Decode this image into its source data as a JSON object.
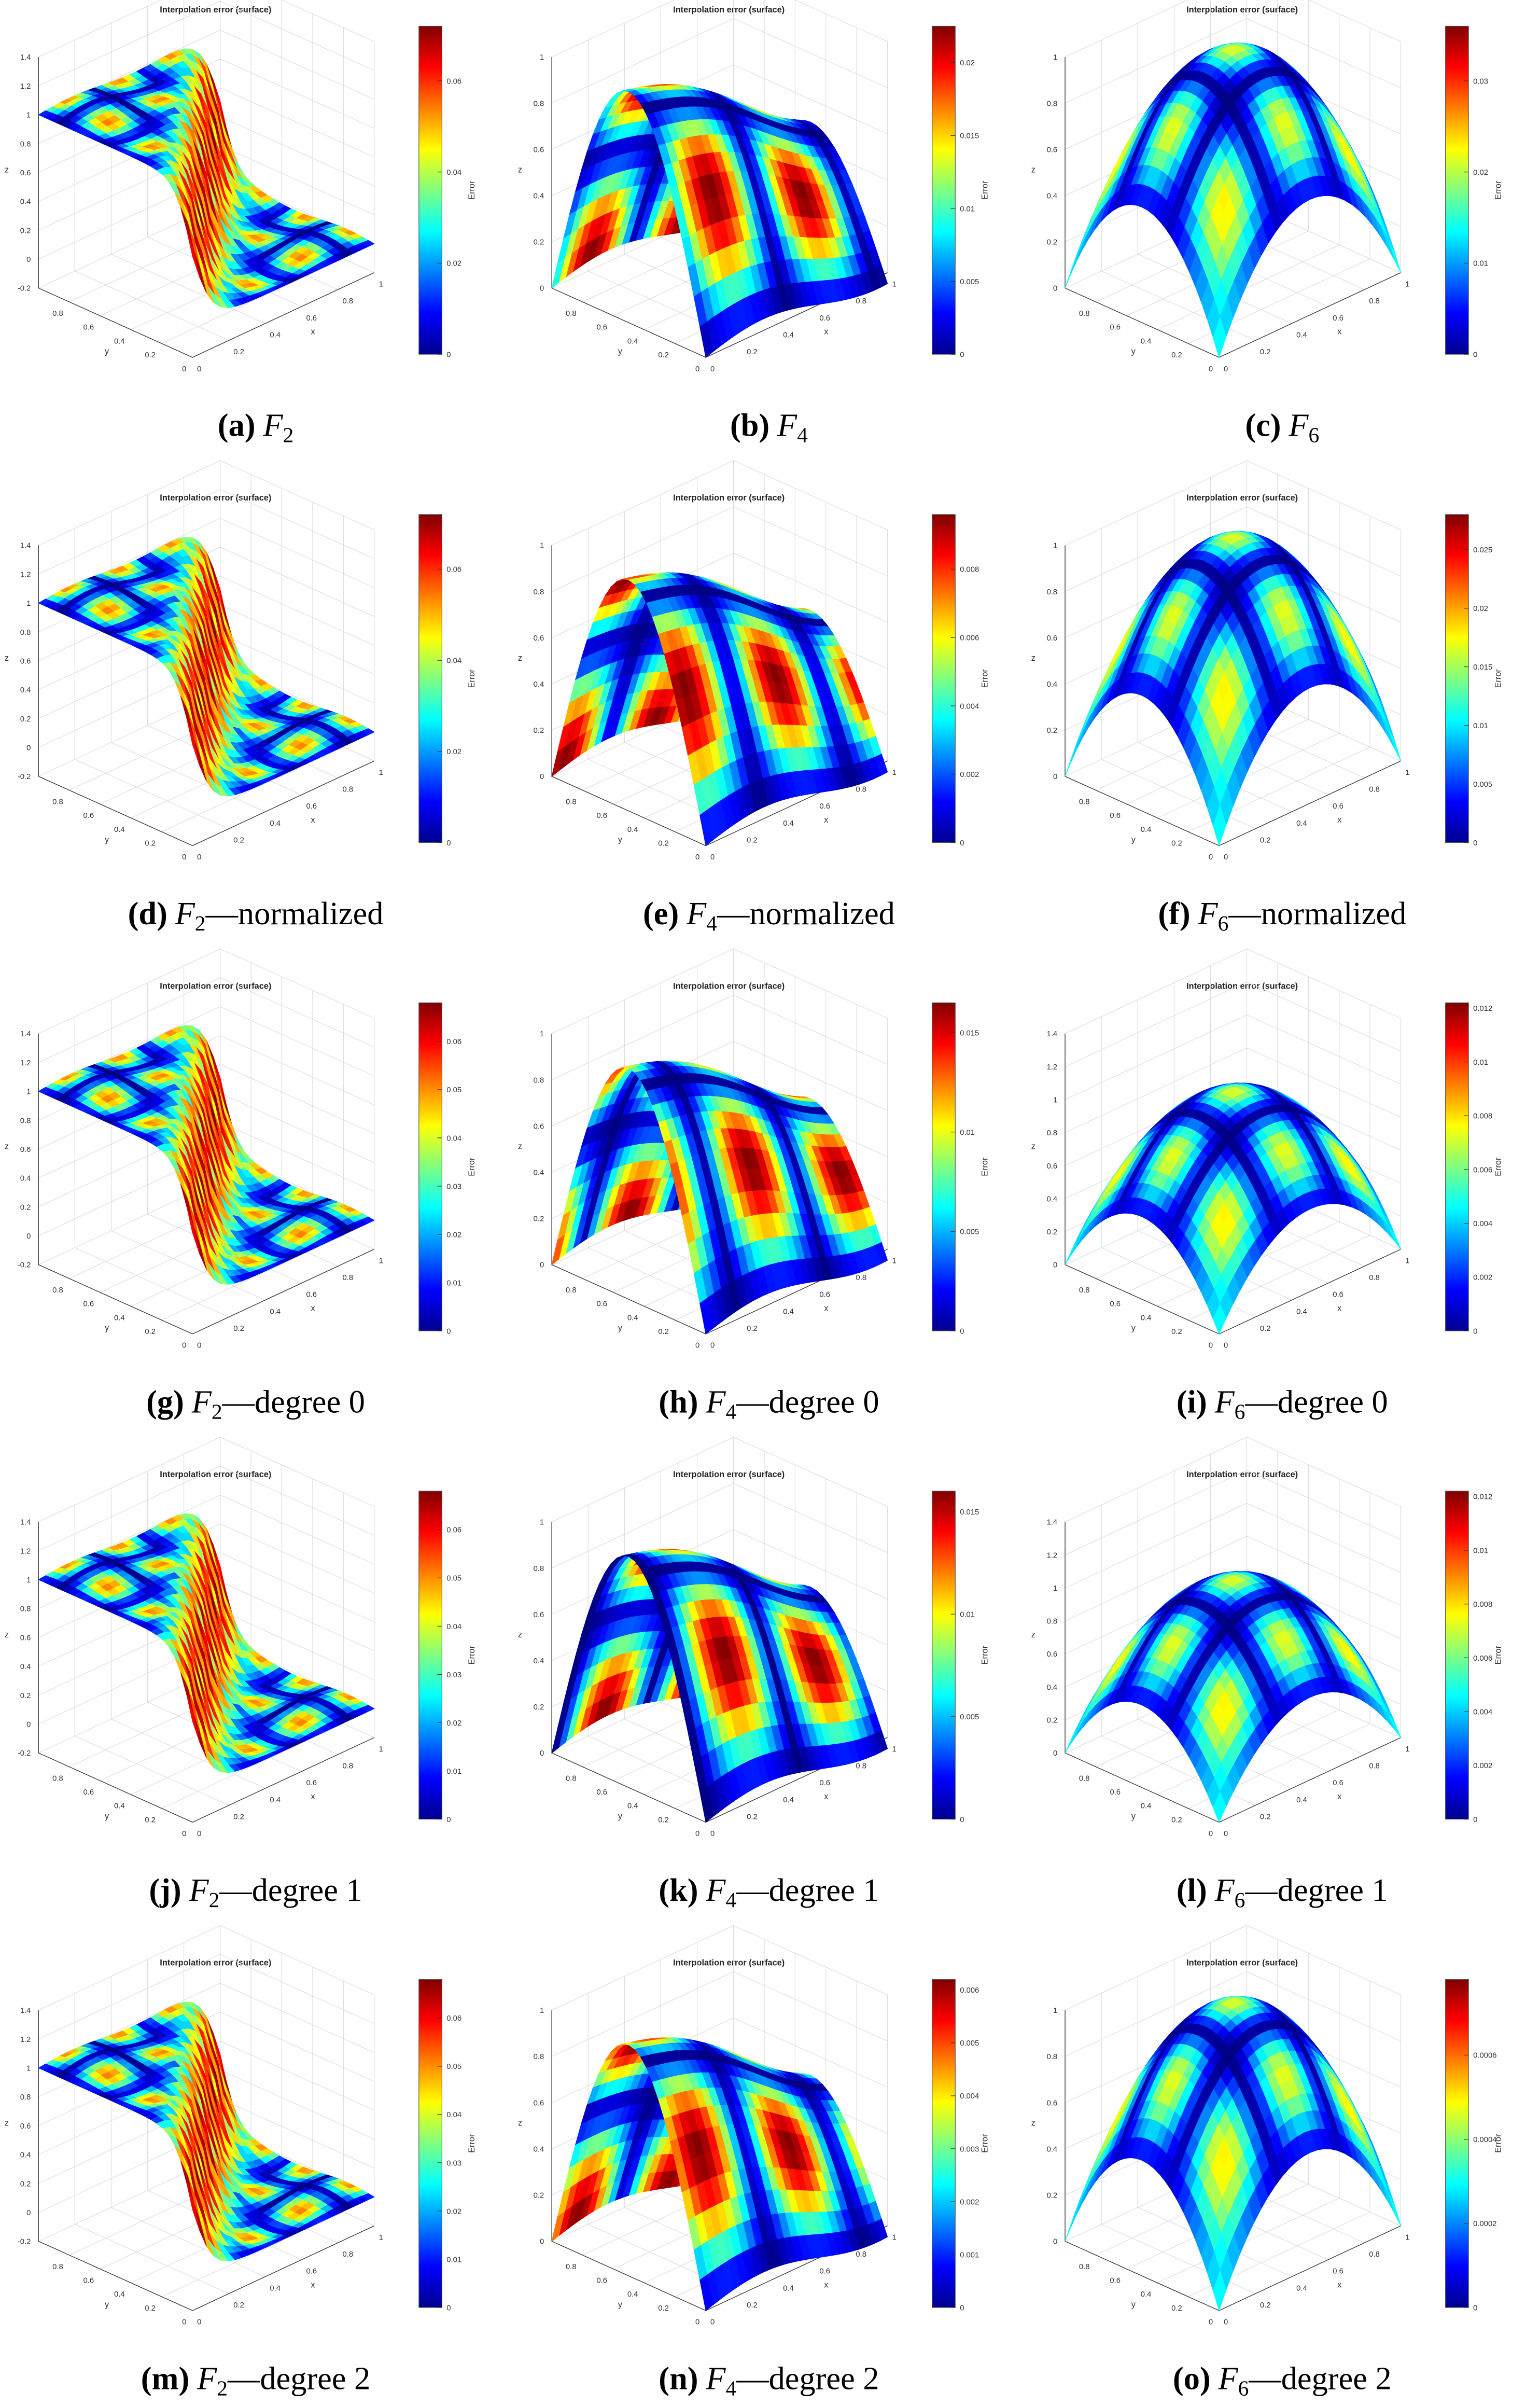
{
  "chart_data": [
    {
      "type": "surface",
      "title": "Interpolation error (surface)",
      "xlabel": "x",
      "ylabel": "y",
      "zlabel": "z",
      "colorbar_label": "Error",
      "caption": {
        "label": "(a)",
        "function": "F",
        "subscript": "2"
      },
      "xlim": [
        0,
        1
      ],
      "ylim": [
        0,
        1
      ],
      "zlim": [
        -0.2,
        1.4
      ],
      "xticks": [
        0,
        0.2,
        0.4,
        0.6,
        0.8,
        1
      ],
      "yticks": [
        0,
        0.2,
        0.4,
        0.6,
        0.8
      ],
      "zticks": [
        -0.2,
        0,
        0.2,
        0.4,
        0.6,
        0.8,
        1,
        1.2,
        1.4
      ],
      "clim": [
        0,
        0.072
      ],
      "cticks": [
        0,
        0.02,
        0.04,
        0.06
      ],
      "colormap": "jet"
    },
    {
      "type": "surface",
      "title": "Interpolation error (surface)",
      "xlabel": "x",
      "ylabel": "y",
      "zlabel": "z",
      "colorbar_label": "Error",
      "caption": {
        "label": "(b)",
        "function": "F",
        "subscript": "4"
      },
      "xlim": [
        0,
        1
      ],
      "ylim": [
        0,
        1
      ],
      "zlim": [
        0,
        1
      ],
      "xticks": [
        0,
        0.2,
        0.4,
        0.6,
        0.8,
        1
      ],
      "yticks": [
        0,
        0.2,
        0.4,
        0.6,
        0.8
      ],
      "zticks": [
        0,
        0.2,
        0.4,
        0.6,
        0.8,
        1
      ],
      "clim": [
        0,
        0.0225
      ],
      "cticks": [
        0,
        0.005,
        0.01,
        0.015,
        0.02
      ],
      "colormap": "jet"
    },
    {
      "type": "surface",
      "title": "Interpolation error (surface)",
      "xlabel": "x",
      "ylabel": "y",
      "zlabel": "z",
      "colorbar_label": "Error",
      "caption": {
        "label": "(c)",
        "function": "F",
        "subscript": "6"
      },
      "xlim": [
        0,
        1
      ],
      "ylim": [
        0,
        1
      ],
      "zlim": [
        0,
        1
      ],
      "xticks": [
        0,
        0.2,
        0.4,
        0.6,
        0.8,
        1
      ],
      "yticks": [
        0,
        0.2,
        0.4,
        0.6,
        0.8
      ],
      "zticks": [
        0,
        0.2,
        0.4,
        0.6,
        0.8,
        1
      ],
      "clim": [
        0,
        0.036
      ],
      "cticks": [
        0,
        0.01,
        0.02,
        0.03
      ],
      "colormap": "jet"
    },
    {
      "type": "surface",
      "title": "Interpolation error (surface)",
      "xlabel": "x",
      "ylabel": "y",
      "zlabel": "z",
      "colorbar_label": "Error",
      "caption": {
        "label": "(d)",
        "function": "F",
        "subscript": "2",
        "suffix": "—normalized"
      },
      "xlim": [
        0,
        1
      ],
      "ylim": [
        0,
        1
      ],
      "zlim": [
        -0.2,
        1.4
      ],
      "xticks": [
        0,
        0.2,
        0.4,
        0.6,
        0.8,
        1
      ],
      "yticks": [
        0,
        0.2,
        0.4,
        0.6,
        0.8
      ],
      "zticks": [
        -0.2,
        0,
        0.2,
        0.4,
        0.6,
        0.8,
        1,
        1.2,
        1.4
      ],
      "clim": [
        0,
        0.072
      ],
      "cticks": [
        0,
        0.02,
        0.04,
        0.06
      ],
      "colormap": "jet"
    },
    {
      "type": "surface",
      "title": "Interpolation error (surface)",
      "xlabel": "x",
      "ylabel": "y",
      "zlabel": "z",
      "colorbar_label": "Error",
      "caption": {
        "label": "(e)",
        "function": "F",
        "subscript": "4",
        "suffix": "—normalized"
      },
      "xlim": [
        0,
        1
      ],
      "ylim": [
        0,
        1
      ],
      "zlim": [
        0,
        1
      ],
      "xticks": [
        0,
        0.2,
        0.4,
        0.6,
        0.8,
        1
      ],
      "yticks": [
        0,
        0.2,
        0.4,
        0.6,
        0.8
      ],
      "zticks": [
        0,
        0.2,
        0.4,
        0.6,
        0.8,
        1
      ],
      "clim": [
        0,
        0.0096
      ],
      "cticks": [
        0,
        0.002,
        0.004,
        0.006,
        0.008
      ],
      "colormap": "jet"
    },
    {
      "type": "surface",
      "title": "Interpolation error (surface)",
      "xlabel": "x",
      "ylabel": "y",
      "zlabel": "z",
      "colorbar_label": "Error",
      "caption": {
        "label": "(f)",
        "function": "F",
        "subscript": "6",
        "suffix": "—normalized"
      },
      "xlim": [
        0,
        1
      ],
      "ylim": [
        0,
        1
      ],
      "zlim": [
        0,
        1
      ],
      "xticks": [
        0,
        0.2,
        0.4,
        0.6,
        0.8,
        1
      ],
      "yticks": [
        0,
        0.2,
        0.4,
        0.6,
        0.8
      ],
      "zticks": [
        0,
        0.2,
        0.4,
        0.6,
        0.8,
        1
      ],
      "clim": [
        0,
        0.028
      ],
      "cticks": [
        0,
        0.005,
        0.01,
        0.015,
        0.02,
        0.025
      ],
      "colormap": "jet"
    },
    {
      "type": "surface",
      "title": "Interpolation error (surface)",
      "xlabel": "x",
      "ylabel": "y",
      "zlabel": "z",
      "colorbar_label": "Error",
      "caption": {
        "label": "(g)",
        "function": "F",
        "subscript": "2",
        "suffix": "—degree 0"
      },
      "xlim": [
        0,
        1
      ],
      "ylim": [
        0,
        1
      ],
      "zlim": [
        -0.2,
        1.4
      ],
      "xticks": [
        0,
        0.2,
        0.4,
        0.6,
        0.8,
        1
      ],
      "yticks": [
        0,
        0.2,
        0.4,
        0.6,
        0.8
      ],
      "zticks": [
        -0.2,
        0,
        0.2,
        0.4,
        0.6,
        0.8,
        1,
        1.2,
        1.4
      ],
      "clim": [
        0,
        0.068
      ],
      "cticks": [
        0,
        0.01,
        0.02,
        0.03,
        0.04,
        0.05,
        0.06
      ],
      "colormap": "jet"
    },
    {
      "type": "surface",
      "title": "Interpolation error (surface)",
      "xlabel": "x",
      "ylabel": "y",
      "zlabel": "z",
      "colorbar_label": "Error",
      "caption": {
        "label": "(h)",
        "function": "F",
        "subscript": "4",
        "suffix": "—degree 0"
      },
      "xlim": [
        0,
        1
      ],
      "ylim": [
        0,
        1
      ],
      "zlim": [
        0,
        1
      ],
      "xticks": [
        0,
        0.2,
        0.4,
        0.6,
        0.8,
        1
      ],
      "yticks": [
        0,
        0.2,
        0.4,
        0.6,
        0.8
      ],
      "zticks": [
        0,
        0.2,
        0.4,
        0.6,
        0.8,
        1
      ],
      "clim": [
        0,
        0.0165
      ],
      "cticks": [
        0,
        0.005,
        0.01,
        0.015
      ],
      "colormap": "jet"
    },
    {
      "type": "surface",
      "title": "Interpolation error (surface)",
      "xlabel": "x",
      "ylabel": "y",
      "zlabel": "z",
      "colorbar_label": "Error",
      "caption": {
        "label": "(i)",
        "function": "F",
        "subscript": "6",
        "suffix": "—degree 0"
      },
      "xlim": [
        0,
        1
      ],
      "ylim": [
        0,
        1
      ],
      "zlim": [
        0,
        1.4
      ],
      "xticks": [
        0,
        0.2,
        0.4,
        0.6,
        0.8,
        1
      ],
      "yticks": [
        0,
        0.2,
        0.4,
        0.6,
        0.8
      ],
      "zticks": [
        0,
        0.2,
        0.4,
        0.6,
        0.8,
        1,
        1.2,
        1.4
      ],
      "clim": [
        0,
        0.0122
      ],
      "cticks": [
        0,
        0.002,
        0.004,
        0.006,
        0.008,
        0.01,
        0.012
      ],
      "colormap": "jet"
    },
    {
      "type": "surface",
      "title": "Interpolation error (surface)",
      "xlabel": "x",
      "ylabel": "y",
      "zlabel": "z",
      "colorbar_label": "Error",
      "caption": {
        "label": "(j)",
        "function": "F",
        "subscript": "2",
        "suffix": "—degree 1"
      },
      "xlim": [
        0,
        1
      ],
      "ylim": [
        0,
        1
      ],
      "zlim": [
        -0.2,
        1.4
      ],
      "xticks": [
        0,
        0.2,
        0.4,
        0.6,
        0.8,
        1
      ],
      "yticks": [
        0,
        0.2,
        0.4,
        0.6,
        0.8
      ],
      "zticks": [
        -0.2,
        0,
        0.2,
        0.4,
        0.6,
        0.8,
        1,
        1.2,
        1.4
      ],
      "clim": [
        0,
        0.068
      ],
      "cticks": [
        0,
        0.01,
        0.02,
        0.03,
        0.04,
        0.05,
        0.06
      ],
      "colormap": "jet"
    },
    {
      "type": "surface",
      "title": "Interpolation error (surface)",
      "xlabel": "x",
      "ylabel": "y",
      "zlabel": "z",
      "colorbar_label": "Error",
      "caption": {
        "label": "(k)",
        "function": "F",
        "subscript": "4",
        "suffix": "—degree 1"
      },
      "xlim": [
        0,
        1
      ],
      "ylim": [
        0,
        1
      ],
      "zlim": [
        0,
        1
      ],
      "xticks": [
        0,
        0.2,
        0.4,
        0.6,
        0.8,
        1
      ],
      "yticks": [
        0,
        0.2,
        0.4,
        0.6,
        0.8
      ],
      "zticks": [
        0,
        0.2,
        0.4,
        0.6,
        0.8,
        1
      ],
      "clim": [
        0,
        0.016
      ],
      "cticks": [
        0,
        0.005,
        0.01,
        0.015
      ],
      "colormap": "jet"
    },
    {
      "type": "surface",
      "title": "Interpolation error (surface)",
      "xlabel": "x",
      "ylabel": "y",
      "zlabel": "z",
      "colorbar_label": "Error",
      "caption": {
        "label": "(l)",
        "function": "F",
        "subscript": "6",
        "suffix": "—degree 1"
      },
      "xlim": [
        0,
        1
      ],
      "ylim": [
        0,
        1
      ],
      "zlim": [
        0,
        1.4
      ],
      "xticks": [
        0,
        0.2,
        0.4,
        0.6,
        0.8,
        1
      ],
      "yticks": [
        0,
        0.2,
        0.4,
        0.6,
        0.8
      ],
      "zticks": [
        0,
        0.2,
        0.4,
        0.6,
        0.8,
        1,
        1.2,
        1.4
      ],
      "clim": [
        0,
        0.0122
      ],
      "cticks": [
        0,
        0.002,
        0.004,
        0.006,
        0.008,
        0.01,
        0.012
      ],
      "colormap": "jet"
    },
    {
      "type": "surface",
      "title": "Interpolation error (surface)",
      "xlabel": "x",
      "ylabel": "y",
      "zlabel": "z",
      "colorbar_label": "Error",
      "caption": {
        "label": "(m)",
        "function": "F",
        "subscript": "2",
        "suffix": "—degree 2"
      },
      "xlim": [
        0,
        1
      ],
      "ylim": [
        0,
        1
      ],
      "zlim": [
        -0.2,
        1.4
      ],
      "xticks": [
        0,
        0.2,
        0.4,
        0.6,
        0.8,
        1
      ],
      "yticks": [
        0,
        0.2,
        0.4,
        0.6,
        0.8
      ],
      "zticks": [
        -0.2,
        0,
        0.2,
        0.4,
        0.6,
        0.8,
        1,
        1.2,
        1.4
      ],
      "clim": [
        0,
        0.068
      ],
      "cticks": [
        0,
        0.01,
        0.02,
        0.03,
        0.04,
        0.05,
        0.06
      ],
      "colormap": "jet"
    },
    {
      "type": "surface",
      "title": "Interpolation error (surface)",
      "xlabel": "x",
      "ylabel": "y",
      "zlabel": "z",
      "colorbar_label": "Error",
      "caption": {
        "label": "(n)",
        "function": "F",
        "subscript": "4",
        "suffix": "—degree 2"
      },
      "xlim": [
        0,
        1
      ],
      "ylim": [
        0,
        1
      ],
      "zlim": [
        0,
        1
      ],
      "xticks": [
        0,
        0.2,
        0.4,
        0.6,
        0.8,
        1
      ],
      "yticks": [
        0,
        0.2,
        0.4,
        0.6,
        0.8
      ],
      "zticks": [
        0,
        0.2,
        0.4,
        0.6,
        0.8,
        1
      ],
      "clim": [
        0,
        0.0062
      ],
      "cticks": [
        0,
        0.001,
        0.002,
        0.003,
        0.004,
        0.005,
        0.006
      ],
      "colormap": "jet"
    },
    {
      "type": "surface",
      "title": "Interpolation error (surface)",
      "xlabel": "x",
      "ylabel": "y",
      "zlabel": "z",
      "colorbar_label": "Error",
      "caption": {
        "label": "(o)",
        "function": "F",
        "subscript": "6",
        "suffix": "—degree 2"
      },
      "xlim": [
        0,
        1
      ],
      "ylim": [
        0,
        1
      ],
      "zlim": [
        0,
        1
      ],
      "xticks": [
        0,
        0.2,
        0.4,
        0.6,
        0.8,
        1
      ],
      "yticks": [
        0,
        0.2,
        0.4,
        0.6,
        0.8
      ],
      "zticks": [
        0,
        0.2,
        0.4,
        0.6,
        0.8,
        1
      ],
      "clim": [
        0,
        0.00078
      ],
      "cticks": [
        0,
        0.0002,
        0.0004,
        0.0006
      ],
      "colormap": "jet"
    }
  ]
}
